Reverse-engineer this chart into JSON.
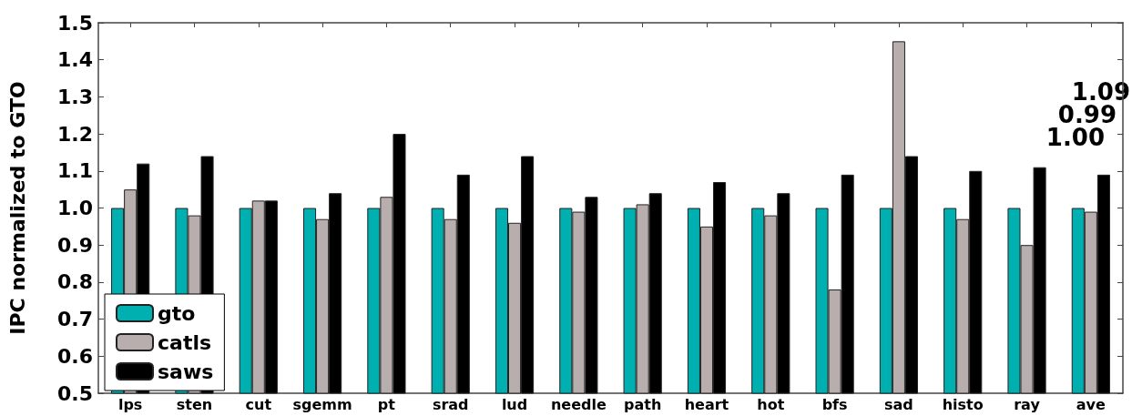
{
  "chart_data": {
    "type": "bar",
    "ylabel": "IPC normalized to GTO",
    "categories": [
      "lps",
      "sten",
      "cut",
      "sgemm",
      "pt",
      "srad",
      "lud",
      "needle",
      "path",
      "heart",
      "hot",
      "bfs",
      "sad",
      "histo",
      "ray",
      "ave"
    ],
    "series": [
      {
        "name": "gto",
        "color": "#00b0b0",
        "values": [
          1.0,
          1.0,
          1.0,
          1.0,
          1.0,
          1.0,
          1.0,
          1.0,
          1.0,
          1.0,
          1.0,
          1.0,
          1.0,
          1.0,
          1.0,
          1.0
        ]
      },
      {
        "name": "catls",
        "color": "#b8aeae",
        "values": [
          1.05,
          0.98,
          1.02,
          0.97,
          1.03,
          0.97,
          0.96,
          0.99,
          1.01,
          0.95,
          0.98,
          0.78,
          1.45,
          0.97,
          0.9,
          0.99
        ]
      },
      {
        "name": "saws",
        "color": "#000000",
        "values": [
          1.12,
          1.14,
          1.02,
          1.04,
          1.2,
          1.09,
          1.14,
          1.03,
          1.04,
          1.07,
          1.04,
          1.09,
          1.14,
          1.1,
          1.11,
          1.09
        ]
      }
    ],
    "ylim": [
      0.5,
      1.5
    ],
    "yticks": [
      0.5,
      0.6,
      0.7,
      0.8,
      0.9,
      {
        "value": 1.0,
        "label": "1.0"
      },
      1.1,
      1.2,
      1.3,
      1.4,
      1.5
    ],
    "annotations": [
      "1.09",
      "0.99",
      "1.00"
    ],
    "legend": "bottom left",
    "grid": false
  }
}
